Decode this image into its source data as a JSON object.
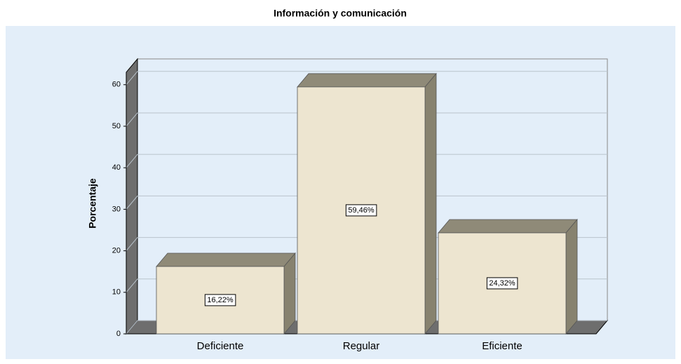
{
  "chart_data": {
    "type": "bar3d",
    "title": "Información y comunicación",
    "y_label": "Porcentaje",
    "categories": [
      "Deficiente",
      "Regular",
      "Eficiente"
    ],
    "values": [
      16.22,
      59.46,
      24.32
    ],
    "value_labels": [
      "16,22%",
      "59,46%",
      "24,32%"
    ],
    "color": "#ede5d0",
    "ylim": [
      0,
      63
    ],
    "yticks": [
      0,
      10,
      20,
      30,
      40,
      50,
      60
    ],
    "grid": true
  }
}
